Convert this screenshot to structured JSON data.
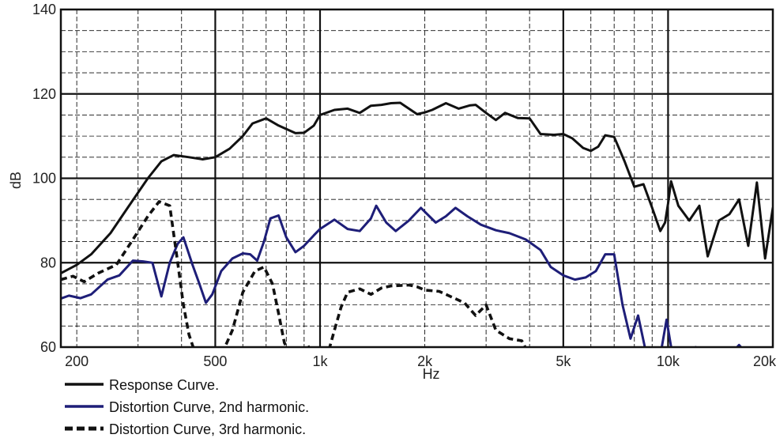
{
  "chart_data": {
    "type": "line",
    "xlabel": "Hz",
    "ylabel": "dB",
    "x_scale": "log",
    "xlim": [
      180,
      20000
    ],
    "ylim": [
      60,
      140
    ],
    "x_ticks": [
      {
        "value": 200,
        "label": "200"
      },
      {
        "value": 500,
        "label": "500"
      },
      {
        "value": 1000,
        "label": "1k"
      },
      {
        "value": 2000,
        "label": "2k"
      },
      {
        "value": 5000,
        "label": "5k"
      },
      {
        "value": 10000,
        "label": "10k"
      },
      {
        "value": 20000,
        "label": "20k"
      }
    ],
    "y_ticks": [
      60,
      80,
      100,
      120,
      140
    ],
    "grid": true,
    "legend_position": "bottom-left",
    "colors": {
      "response": "#111111",
      "second": "#1e1e78",
      "third": "#111111",
      "grid": "#111111"
    },
    "series": [
      {
        "name": "Response Curve.",
        "style": "solid",
        "color": "#111111",
        "points": [
          [
            180,
            77.5
          ],
          [
            200,
            79.5
          ],
          [
            220,
            82
          ],
          [
            250,
            87
          ],
          [
            280,
            93
          ],
          [
            320,
            100
          ],
          [
            350,
            104
          ],
          [
            380,
            105.5
          ],
          [
            420,
            105
          ],
          [
            460,
            104.5
          ],
          [
            500,
            105
          ],
          [
            550,
            107
          ],
          [
            600,
            110
          ],
          [
            640,
            113
          ],
          [
            700,
            114.2
          ],
          [
            760,
            112.5
          ],
          [
            850,
            110.7
          ],
          [
            900,
            110.8
          ],
          [
            960,
            112.5
          ],
          [
            1000,
            115
          ],
          [
            1100,
            116.2
          ],
          [
            1200,
            116.5
          ],
          [
            1300,
            115.5
          ],
          [
            1400,
            117.2
          ],
          [
            1500,
            117.4
          ],
          [
            1600,
            117.8
          ],
          [
            1700,
            117.9
          ],
          [
            1800,
            116.5
          ],
          [
            1900,
            115.2
          ],
          [
            2000,
            115.6
          ],
          [
            2100,
            116.2
          ],
          [
            2300,
            117.8
          ],
          [
            2500,
            116.5
          ],
          [
            2700,
            117.3
          ],
          [
            2800,
            117.4
          ],
          [
            3000,
            115.5
          ],
          [
            3200,
            113.8
          ],
          [
            3400,
            115.5
          ],
          [
            3700,
            114.3
          ],
          [
            4000,
            114.2
          ],
          [
            4300,
            110.5
          ],
          [
            4700,
            110.3
          ],
          [
            5000,
            110.5
          ],
          [
            5300,
            109.5
          ],
          [
            5700,
            107.2
          ],
          [
            6000,
            106.5
          ],
          [
            6300,
            107.5
          ],
          [
            6600,
            110.2
          ],
          [
            7000,
            109.8
          ],
          [
            7500,
            104
          ],
          [
            8000,
            98
          ],
          [
            8500,
            98.6
          ],
          [
            9000,
            93
          ],
          [
            9500,
            87.5
          ],
          [
            9800,
            89.5
          ],
          [
            10000,
            94
          ],
          [
            10200,
            99.3
          ],
          [
            10700,
            93.5
          ],
          [
            11500,
            90
          ],
          [
            12300,
            93.5
          ],
          [
            13000,
            81.5
          ],
          [
            14000,
            90
          ],
          [
            15000,
            91.5
          ],
          [
            16000,
            95
          ],
          [
            17000,
            84
          ],
          [
            18000,
            99
          ],
          [
            19000,
            81
          ],
          [
            20000,
            93
          ],
          [
            21000,
            90
          ]
        ]
      },
      {
        "name": "Distortion Curve, 2nd harmonic.",
        "style": "solid",
        "color": "#1e1e78",
        "points": [
          [
            180,
            71.5
          ],
          [
            190,
            72.2
          ],
          [
            205,
            71.6
          ],
          [
            220,
            72.5
          ],
          [
            245,
            76
          ],
          [
            265,
            77
          ],
          [
            290,
            80.5
          ],
          [
            310,
            80.3
          ],
          [
            330,
            80
          ],
          [
            350,
            72
          ],
          [
            370,
            80
          ],
          [
            390,
            84.5
          ],
          [
            405,
            86
          ],
          [
            430,
            79.5
          ],
          [
            450,
            75
          ],
          [
            470,
            70.5
          ],
          [
            490,
            72.5
          ],
          [
            520,
            78
          ],
          [
            560,
            81
          ],
          [
            600,
            82.2
          ],
          [
            630,
            82
          ],
          [
            660,
            80.5
          ],
          [
            690,
            85
          ],
          [
            720,
            90.5
          ],
          [
            760,
            91.2
          ],
          [
            800,
            86
          ],
          [
            850,
            82.5
          ],
          [
            900,
            84
          ],
          [
            960,
            86.5
          ],
          [
            1000,
            88
          ],
          [
            1100,
            90.2
          ],
          [
            1200,
            88
          ],
          [
            1300,
            87.5
          ],
          [
            1400,
            90.5
          ],
          [
            1450,
            93.5
          ],
          [
            1550,
            89.5
          ],
          [
            1650,
            87.5
          ],
          [
            1800,
            90
          ],
          [
            1950,
            93
          ],
          [
            2150,
            89.5
          ],
          [
            2300,
            91
          ],
          [
            2450,
            93
          ],
          [
            2650,
            91
          ],
          [
            2900,
            89
          ],
          [
            3200,
            87.7
          ],
          [
            3500,
            87
          ],
          [
            3900,
            85.5
          ],
          [
            4300,
            83
          ],
          [
            4600,
            79
          ],
          [
            5000,
            77
          ],
          [
            5400,
            76
          ],
          [
            5800,
            76.5
          ],
          [
            6200,
            78
          ],
          [
            6600,
            82
          ],
          [
            7000,
            82
          ],
          [
            7400,
            70
          ],
          [
            7800,
            62
          ],
          [
            8200,
            67.5
          ],
          [
            8600,
            59.5
          ],
          [
            9000,
            56
          ],
          [
            9500,
            57
          ],
          [
            9900,
            66.5
          ],
          [
            10300,
            57
          ],
          [
            11000,
            56
          ],
          [
            12000,
            60
          ],
          [
            13000,
            57
          ],
          [
            15000,
            58
          ],
          [
            16000,
            60.5
          ],
          [
            17000,
            57
          ],
          [
            20000,
            57
          ]
        ]
      },
      {
        "name": "Distortion Curve, 3rd harmonic.",
        "style": "dashed",
        "color": "#111111",
        "points": [
          [
            180,
            76
          ],
          [
            195,
            76.8
          ],
          [
            210,
            75.5
          ],
          [
            230,
            77.5
          ],
          [
            260,
            79.5
          ],
          [
            290,
            85.5
          ],
          [
            320,
            91
          ],
          [
            345,
            94.5
          ],
          [
            370,
            93.5
          ],
          [
            390,
            80
          ],
          [
            405,
            70
          ],
          [
            420,
            63
          ],
          [
            440,
            58
          ],
          [
            480,
            55
          ],
          [
            520,
            57
          ],
          [
            560,
            64
          ],
          [
            600,
            73
          ],
          [
            650,
            78
          ],
          [
            690,
            79
          ],
          [
            730,
            75
          ],
          [
            760,
            68
          ],
          [
            790,
            61
          ],
          [
            830,
            57
          ],
          [
            880,
            58
          ],
          [
            920,
            60.5
          ],
          [
            960,
            58
          ],
          [
            1000,
            56.5
          ],
          [
            1050,
            58
          ],
          [
            1100,
            64
          ],
          [
            1150,
            69.5
          ],
          [
            1200,
            73
          ],
          [
            1300,
            73.8
          ],
          [
            1400,
            72.5
          ],
          [
            1500,
            74
          ],
          [
            1600,
            74.5
          ],
          [
            1800,
            74.7
          ],
          [
            1900,
            74.3
          ],
          [
            2000,
            73.5
          ],
          [
            2200,
            73.2
          ],
          [
            2400,
            71.8
          ],
          [
            2600,
            70.5
          ],
          [
            2800,
            67.5
          ],
          [
            3000,
            70
          ],
          [
            3200,
            64
          ],
          [
            3500,
            62
          ],
          [
            3800,
            61.5
          ],
          [
            4000,
            58
          ]
        ]
      }
    ]
  }
}
